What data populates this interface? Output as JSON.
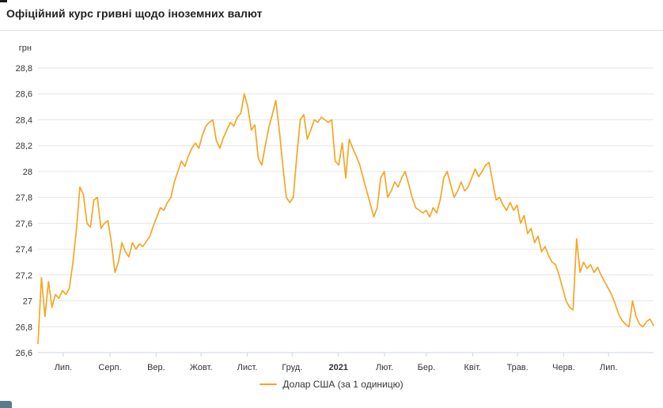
{
  "page": {
    "title": "Офіційний курс гривні щодо іноземних валют"
  },
  "chart_data": {
    "type": "line",
    "title": "Офіційний курс гривні щодо іноземних валют",
    "y_axis_title": "грн",
    "ylim": [
      26.6,
      28.8
    ],
    "y_tick_step": 0.2,
    "y_tick_labels": [
      "26,6",
      "26,8",
      "27",
      "27,2",
      "27,4",
      "27,6",
      "27,8",
      "28",
      "28,2",
      "28,4",
      "28,6",
      "28,8"
    ],
    "grid": "horizontal",
    "legend_position": "bottom",
    "colors": {
      "grid": "#e6e6e6",
      "axis_line": "#ccd6eb",
      "axis_text": "#333333"
    },
    "x_ticks": [
      {
        "label": "Лип.",
        "pos": 0.041,
        "bold": false
      },
      {
        "label": "Серп.",
        "pos": 0.117,
        "bold": false
      },
      {
        "label": "Вер.",
        "pos": 0.192,
        "bold": false
      },
      {
        "label": "Жовт.",
        "pos": 0.265,
        "bold": false
      },
      {
        "label": "Лист.",
        "pos": 0.34,
        "bold": false
      },
      {
        "label": "Груд.",
        "pos": 0.413,
        "bold": false
      },
      {
        "label": "2021",
        "pos": 0.488,
        "bold": true
      },
      {
        "label": "Лют.",
        "pos": 0.563,
        "bold": false
      },
      {
        "label": "Бер.",
        "pos": 0.631,
        "bold": false
      },
      {
        "label": "Квіт.",
        "pos": 0.706,
        "bold": false
      },
      {
        "label": "Трав.",
        "pos": 0.779,
        "bold": false
      },
      {
        "label": "Черв.",
        "pos": 0.854,
        "bold": false
      },
      {
        "label": "Лип.",
        "pos": 0.927,
        "bold": false
      }
    ],
    "series": [
      {
        "name": "Долар США (за 1 одиницю)",
        "color": "#f5a623",
        "values": [
          26.67,
          27.18,
          26.88,
          27.15,
          26.95,
          27.05,
          27.02,
          27.08,
          27.05,
          27.1,
          27.3,
          27.55,
          27.88,
          27.82,
          27.6,
          27.57,
          27.78,
          27.8,
          27.56,
          27.6,
          27.62,
          27.45,
          27.22,
          27.3,
          27.45,
          27.38,
          27.34,
          27.45,
          27.4,
          27.44,
          27.42,
          27.46,
          27.5,
          27.58,
          27.65,
          27.72,
          27.7,
          27.76,
          27.8,
          27.92,
          28.0,
          28.08,
          28.04,
          28.12,
          28.18,
          28.22,
          28.18,
          28.28,
          28.35,
          28.38,
          28.4,
          28.24,
          28.18,
          28.26,
          28.32,
          28.38,
          28.35,
          28.42,
          28.45,
          28.6,
          28.5,
          28.32,
          28.36,
          28.1,
          28.05,
          28.2,
          28.34,
          28.44,
          28.55,
          28.32,
          28.05,
          27.8,
          27.76,
          27.8,
          28.12,
          28.4,
          28.44,
          28.25,
          28.32,
          28.4,
          28.38,
          28.42,
          28.4,
          28.38,
          28.4,
          28.08,
          28.05,
          28.22,
          27.95,
          28.25,
          28.18,
          28.12,
          28.05,
          27.95,
          27.85,
          27.75,
          27.65,
          27.72,
          27.95,
          28.0,
          27.8,
          27.85,
          27.92,
          27.88,
          27.95,
          28.0,
          27.9,
          27.8,
          27.72,
          27.7,
          27.68,
          27.7,
          27.65,
          27.72,
          27.68,
          27.78,
          27.95,
          28.0,
          27.9,
          27.8,
          27.85,
          27.92,
          27.85,
          27.88,
          27.95,
          28.02,
          27.96,
          28.0,
          28.05,
          28.07,
          27.92,
          27.78,
          27.8,
          27.74,
          27.7,
          27.76,
          27.7,
          27.74,
          27.6,
          27.66,
          27.52,
          27.56,
          27.45,
          27.5,
          27.38,
          27.42,
          27.35,
          27.3,
          27.28,
          27.2,
          27.1,
          27.0,
          26.95,
          26.93,
          27.48,
          27.22,
          27.3,
          27.25,
          27.28,
          27.22,
          27.26,
          27.2,
          27.15,
          27.1,
          27.05,
          26.98,
          26.9,
          26.85,
          26.82,
          26.8,
          27.0,
          26.88,
          26.82,
          26.8,
          26.84,
          26.86,
          26.81
        ]
      }
    ]
  },
  "legend": {
    "label": "Долар США (за 1 одиницю)"
  }
}
